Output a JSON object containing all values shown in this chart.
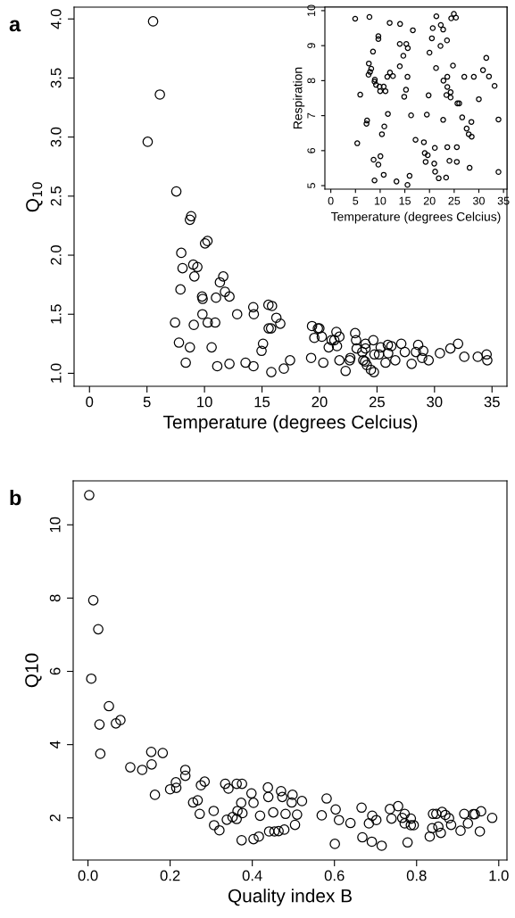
{
  "chart_data": [
    {
      "type": "scatter",
      "xlabel": "Temperature (degrees Celcius)",
      "ylabel": "Q$_{10}$",
      "annotations": [
        "a"
      ],
      "marker": "circle",
      "grid": false,
      "xlim": [
        -1.34,
        36.3
      ],
      "ylim": [
        0.89,
        4.1
      ],
      "xticks": [
        0,
        5,
        10,
        15,
        20,
        25,
        30,
        35
      ],
      "yticks": [
        {
          "value": 1,
          "label": "1.0"
        },
        {
          "value": 1.5,
          "label": "1.5"
        },
        {
          "value": 2,
          "label": "2.0"
        },
        {
          "value": 2.5,
          "label": "2.5"
        },
        {
          "value": 3,
          "label": "3.0"
        },
        {
          "value": 3.5,
          "label": "3.5"
        },
        {
          "value": 4,
          "label": "4.0"
        }
      ],
      "series": [
        {
          "color": "#000000",
          "x": [
            5.53,
            6.12,
            5.06,
            7.55,
            8.84,
            8.73,
            10.05,
            10.26,
            7.98,
            8.09,
            9.02,
            9.38,
            9.12,
            7.91,
            11.63,
            11.34,
            11.78,
            12.17,
            9.79,
            9.84,
            11.0,
            7.44,
            9.07,
            9.82,
            10.28,
            10.93,
            12.84,
            14.24,
            14.29,
            7.78,
            8.73,
            10.62,
            8.37,
            11.11,
            12.17,
            13.57,
            14.26,
            15.09,
            14.96,
            15.56,
            15.87,
            15.58,
            15.79,
            16.25,
            16.59,
            15.81,
            16.9,
            17.44,
            19.35,
            19.55,
            19.86,
            19.99,
            20.2,
            19.27,
            20.33,
            21.47,
            21.73,
            21.05,
            21.29,
            20.8,
            21.52,
            21.73,
            22.27,
            22.63,
            22.68,
            23.1,
            23.18,
            23.23,
            23.72,
            24.0,
            24.0,
            23.8,
            23.96,
            24.11,
            24.47,
            24.73,
            24.68,
            24.78,
            25.17,
            25.32,
            25.74,
            25.94,
            26.25,
            25.97,
            26.59,
            27.11,
            27.42,
            28.01,
            28.38,
            28.58,
            29.02,
            28.92,
            29.49,
            30.47,
            31.38,
            32.05,
            32.59,
            33.76,
            34.53,
            34.59
          ],
          "values": [
            3.98,
            3.36,
            2.96,
            2.54,
            2.33,
            2.3,
            2.1,
            2.12,
            2.02,
            1.89,
            1.92,
            1.9,
            1.82,
            1.71,
            1.82,
            1.77,
            1.69,
            1.65,
            1.65,
            1.63,
            1.64,
            1.43,
            1.41,
            1.5,
            1.43,
            1.43,
            1.5,
            1.56,
            1.5,
            1.26,
            1.22,
            1.22,
            1.09,
            1.06,
            1.08,
            1.09,
            1.06,
            1.25,
            1.19,
            1.58,
            1.57,
            1.38,
            1.38,
            1.47,
            1.42,
            1.01,
            1.04,
            1.11,
            1.4,
            1.3,
            1.38,
            1.38,
            1.31,
            1.13,
            1.09,
            1.35,
            1.31,
            1.28,
            1.28,
            1.22,
            1.23,
            1.11,
            1.02,
            1.11,
            1.13,
            1.34,
            1.28,
            1.21,
            1.18,
            1.25,
            1.21,
            1.11,
            1.1,
            1.07,
            1.03,
            1.01,
            1.28,
            1.16,
            1.16,
            1.22,
            1.09,
            1.24,
            1.23,
            1.17,
            1.11,
            1.25,
            1.18,
            1.08,
            1.18,
            1.24,
            1.19,
            1.13,
            1.11,
            1.17,
            1.21,
            1.25,
            1.14,
            1.14,
            1.16,
            1.11
          ]
        }
      ]
    },
    {
      "type": "scatter",
      "xlabel": "Temperature (degrees Celcius)",
      "ylabel": "Respiration",
      "marker": "circle",
      "grid": false,
      "xlim": [
        -1.2,
        35.7
      ],
      "ylim": [
        4.9,
        10.1
      ],
      "xticks": [
        0,
        5,
        10,
        15,
        20,
        25,
        30,
        35
      ],
      "yticks": [
        5,
        6,
        7,
        8,
        9,
        10
      ],
      "series": [
        {
          "color": "#000000",
          "x": [
            4.94,
            7.83,
            11.93,
            14.04,
            16.63,
            21.39,
            22.29,
            22.77,
            20.66,
            24.94,
            24.4,
            25.36,
            9.64,
            9.64,
            13.98,
            15.3,
            15.6,
            20.48,
            22.23,
            23.55,
            20.0,
            14.7,
            8.55,
            7.71,
            8.19,
            7.95,
            7.65,
            8.92,
            8.86,
            9.16,
            9.88,
            10.72,
            10.0,
            11.08,
            11.45,
            11.99,
            12.59,
            13.98,
            15.54,
            15.24,
            14.88,
            21.33,
            24.76,
            22.83,
            23.61,
            23.61,
            24.28,
            24.28,
            23.43,
            19.82,
            5.96,
            25.66,
            26.02,
            27.05,
            28.98,
            30.84,
            31.51,
            32.05,
            33.19,
            30.0,
            11.57,
            16.27,
            19.46,
            22.77,
            26.63,
            7.35,
            7.23,
            10.84,
            10.36,
            28.49,
            27.53,
            27.95,
            28.55,
            33.98,
            5.36,
            17.17,
            18.86,
            21.08,
            23.61,
            25.54,
            19.04,
            19.64,
            19.22,
            20.96,
            24.04,
            25.54,
            28.13,
            10.06,
            8.67,
            9.64,
            21.14,
            21.87,
            23.37,
            33.98,
            8.86,
            10.72,
            13.31,
            15.96,
            15.54
          ],
          "values": [
            9.77,
            9.82,
            9.65,
            9.62,
            9.44,
            9.84,
            9.59,
            9.46,
            9.5,
            9.91,
            9.78,
            9.8,
            9.27,
            9.19,
            9.05,
            9.05,
            8.93,
            9.21,
            8.99,
            9.15,
            8.8,
            8.71,
            8.83,
            8.49,
            8.34,
            8.25,
            8.17,
            8.03,
            7.97,
            7.88,
            7.83,
            7.83,
            7.7,
            7.7,
            8.11,
            8.23,
            8.13,
            8.41,
            8.11,
            7.74,
            7.54,
            8.36,
            8.43,
            8.0,
            8.11,
            7.82,
            7.67,
            7.52,
            7.59,
            7.58,
            7.6,
            7.35,
            7.35,
            8.11,
            8.11,
            8.3,
            8.65,
            8.12,
            7.85,
            7.47,
            7.05,
            7.01,
            7.03,
            6.88,
            6.95,
            6.86,
            6.77,
            6.69,
            6.47,
            6.82,
            6.63,
            6.47,
            6.4,
            6.89,
            6.21,
            6.31,
            6.24,
            6.08,
            6.1,
            6.1,
            5.93,
            5.87,
            5.68,
            5.63,
            5.71,
            5.68,
            5.51,
            5.84,
            5.74,
            5.6,
            5.4,
            5.21,
            5.23,
            5.39,
            5.15,
            5.31,
            5.12,
            5.28,
            5.02
          ]
        }
      ]
    },
    {
      "type": "scatter",
      "xlabel": "Quality index B",
      "ylabel": "Q10",
      "annotations": [
        "b"
      ],
      "marker": "circle",
      "grid": false,
      "xlim": [
        -0.036,
        1.02
      ],
      "ylim": [
        0.85,
        11.2
      ],
      "xticks": [
        {
          "value": 0,
          "label": "0.0"
        },
        {
          "value": 0.2,
          "label": "0.2"
        },
        {
          "value": 0.4,
          "label": "0.4"
        },
        {
          "value": 0.6,
          "label": "0.6"
        },
        {
          "value": 0.8,
          "label": "0.8"
        },
        {
          "value": 1,
          "label": "1.0"
        }
      ],
      "yticks": [
        2,
        4,
        6,
        8,
        10
      ],
      "series": [
        {
          "color": "#000000",
          "x": [
            0.003,
            0.013,
            0.025,
            0.008,
            0.051,
            0.028,
            0.068,
            0.079,
            0.03,
            0.103,
            0.132,
            0.154,
            0.155,
            0.182,
            0.163,
            0.2,
            0.215,
            0.214,
            0.237,
            0.237,
            0.256,
            0.267,
            0.275,
            0.284,
            0.272,
            0.306,
            0.307,
            0.32,
            0.334,
            0.342,
            0.362,
            0.375,
            0.338,
            0.352,
            0.362,
            0.364,
            0.373,
            0.376,
            0.398,
            0.403,
            0.419,
            0.374,
            0.403,
            0.416,
            0.438,
            0.439,
            0.47,
            0.473,
            0.498,
            0.496,
            0.521,
            0.451,
            0.481,
            0.509,
            0.504,
            0.441,
            0.454,
            0.464,
            0.478,
            0.581,
            0.569,
            0.603,
            0.611,
            0.601,
            0.639,
            0.666,
            0.668,
            0.692,
            0.702,
            0.684,
            0.691,
            0.715,
            0.735,
            0.755,
            0.739,
            0.765,
            0.771,
            0.771,
            0.786,
            0.786,
            0.793,
            0.778,
            0.832,
            0.838,
            0.84,
            0.848,
            0.862,
            0.87,
            0.853,
            0.859,
            0.879,
            0.884,
            0.907,
            0.916,
            0.925,
            0.938,
            0.942,
            0.957,
            0.954,
            0.984
          ],
          "values": [
            10.81,
            7.94,
            7.15,
            5.8,
            5.05,
            4.55,
            4.58,
            4.67,
            3.75,
            3.38,
            3.31,
            3.8,
            3.46,
            3.77,
            2.63,
            2.78,
            2.82,
            2.97,
            3.31,
            3.15,
            2.42,
            2.48,
            2.89,
            2.99,
            2.11,
            2.19,
            1.8,
            1.66,
            2.93,
            2.8,
            2.93,
            2.93,
            1.95,
            2.02,
            1.97,
            2.19,
            2.41,
            2.13,
            2.67,
            2.41,
            2.06,
            1.39,
            1.42,
            1.49,
            2.83,
            2.57,
            2.73,
            2.57,
            2.63,
            2.42,
            2.46,
            2.15,
            2.11,
            2.09,
            1.81,
            1.63,
            1.63,
            1.64,
            1.68,
            2.53,
            2.07,
            2.23,
            1.94,
            1.29,
            1.86,
            2.28,
            1.47,
            2.06,
            1.94,
            1.85,
            1.35,
            1.24,
            2.24,
            2.32,
            1.98,
            2.0,
            2.11,
            1.85,
            1.98,
            1.8,
            1.8,
            1.33,
            1.49,
            1.72,
            2.11,
            2.11,
            2.16,
            2.08,
            1.76,
            1.59,
            1.99,
            1.81,
            1.65,
            2.11,
            1.85,
            2.1,
            2.1,
            2.18,
            1.63,
            2.0
          ]
        }
      ]
    }
  ]
}
